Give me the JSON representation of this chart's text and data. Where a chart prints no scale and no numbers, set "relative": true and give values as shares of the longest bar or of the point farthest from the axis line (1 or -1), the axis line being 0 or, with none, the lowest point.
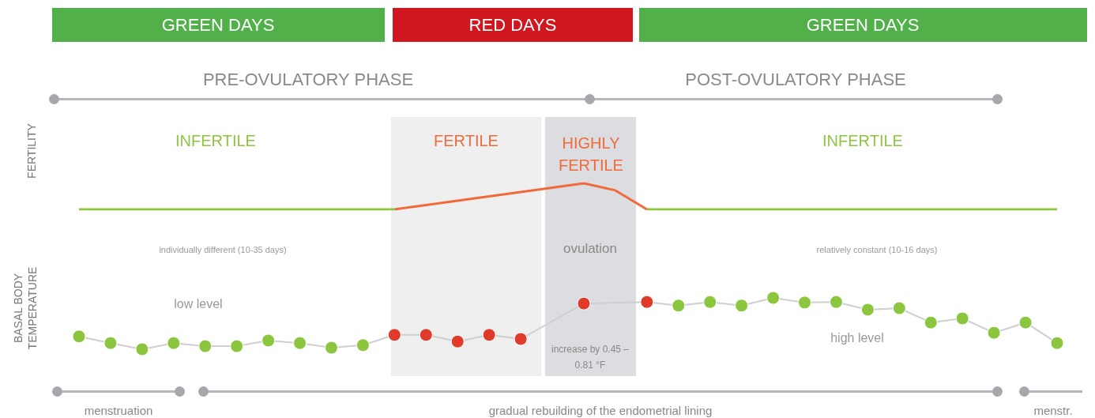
{
  "chart_data": [
    {
      "type": "line",
      "relative": true,
      "ylabel": "FERTILITY",
      "legend": false,
      "marker": "none",
      "categories": [
        null,
        null,
        null,
        null,
        null,
        null,
        null,
        null,
        null,
        null,
        null,
        null,
        null,
        null,
        null,
        null,
        null,
        null,
        null,
        null,
        null,
        null,
        null,
        null,
        null,
        null,
        null,
        null,
        null,
        null,
        null,
        null
      ],
      "series": [
        {
          "color": "#8cc63f",
          "values": [
            0,
            0,
            0,
            0,
            0,
            0,
            0,
            0,
            0,
            0,
            0,
            null,
            null,
            null,
            null,
            null,
            null,
            null,
            null,
            null,
            null,
            null,
            null,
            null,
            null,
            null,
            null,
            null,
            null,
            null,
            null,
            null
          ]
        },
        {
          "color": "#f26a3b",
          "values": [
            null,
            null,
            null,
            null,
            null,
            null,
            null,
            null,
            null,
            null,
            0,
            0.17,
            0.33,
            0.5,
            0.67,
            0.83,
            1,
            0.73,
            0,
            null,
            null,
            null,
            null,
            null,
            null,
            null,
            null,
            null,
            null,
            null,
            null,
            null
          ]
        },
        {
          "color": "#8cc63f",
          "values": [
            null,
            null,
            null,
            null,
            null,
            null,
            null,
            null,
            null,
            null,
            null,
            null,
            null,
            null,
            null,
            null,
            null,
            null,
            0,
            0,
            0,
            0,
            0,
            0,
            0,
            0,
            0,
            0,
            0,
            0,
            0,
            0
          ]
        }
      ],
      "annotations": [
        "GREEN DAYS",
        "RED DAYS",
        "GREEN DAYS",
        "PRE-OVULATORY PHASE",
        "POST-OVULATORY PHASE",
        "INFERTILE",
        "INFERTILE",
        "FERTILE",
        "HIGHLY FERTILE"
      ]
    },
    {
      "type": "line",
      "relative": true,
      "ylabel": "BASAL BODY TEMPERATURE",
      "legend": false,
      "marker": "circle",
      "categories": [
        null,
        null,
        null,
        null,
        null,
        null,
        null,
        null,
        null,
        null,
        null,
        null,
        null,
        null,
        null,
        null,
        null,
        null,
        null,
        null,
        null,
        null,
        null,
        null,
        null,
        null,
        null,
        null,
        null,
        null,
        null,
        null
      ],
      "series": [
        {
          "color": "#cfcfcf",
          "colors": [
            "#8cc63f",
            "#8cc63f",
            "#8cc63f",
            "#8cc63f",
            "#8cc63f",
            "#8cc63f",
            "#8cc63f",
            "#8cc63f",
            "#8cc63f",
            "#8cc63f",
            "#e03a2a",
            "#e03a2a",
            "#e03a2a",
            "#e03a2a",
            "#e03a2a",
            null,
            "#e03a2a",
            null,
            "#e03a2a",
            "#8cc63f",
            "#8cc63f",
            "#8cc63f",
            "#8cc63f",
            "#8cc63f",
            "#8cc63f",
            "#8cc63f",
            "#8cc63f",
            "#8cc63f",
            "#8cc63f",
            "#8cc63f",
            "#8cc63f",
            "#8cc63f"
          ],
          "values": [
            0.25,
            0.12,
            0,
            0.12,
            0.06,
            0.06,
            0.17,
            0.12,
            0.03,
            0.08,
            0.28,
            0.28,
            0.15,
            0.28,
            0.2,
            null,
            0.89,
            null,
            0.92,
            0.85,
            0.92,
            0.85,
            1,
            0.91,
            0.92,
            0.77,
            0.8,
            0.52,
            0.6,
            0.32,
            0.52,
            0.12
          ]
        }
      ],
      "annotations": [
        "individually different (10-35 days)",
        "ovulation",
        "relatively constant (10-16 days)",
        "low level",
        "high level",
        "increase by 0.45 – 0.81 °F",
        "menstruation",
        "gradual rebuilding of the endometrial lining",
        "menstr."
      ]
    }
  ]
}
